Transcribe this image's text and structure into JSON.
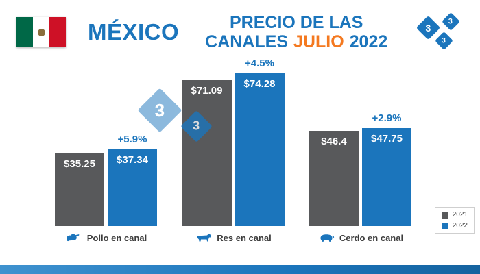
{
  "header": {
    "country_title": "MÉXICO",
    "title_line1": "PRECIO DE LAS",
    "title_word_canales": "CANALES",
    "title_word_month": "JULIO",
    "title_word_year": "2022",
    "logo_text": "3"
  },
  "chart_data": {
    "type": "bar",
    "title": "PRECIO DE LAS CANALES JULIO 2022",
    "categories": [
      "Pollo en canal",
      "Res en canal",
      "Cerdo en canal"
    ],
    "series": [
      {
        "name": "2021",
        "color": "#58595B",
        "values": [
          35.25,
          71.09,
          46.4
        ]
      },
      {
        "name": "2022",
        "color": "#1B75BC",
        "values": [
          37.34,
          74.28,
          47.75
        ]
      }
    ],
    "value_labels": [
      [
        "$35.25",
        "$37.34"
      ],
      [
        "$71.09",
        "$74.28"
      ],
      [
        "$46.4",
        "$47.75"
      ]
    ],
    "pct_change": [
      "+5.9%",
      "+4.5%",
      "+2.9%"
    ],
    "ylim": [
      0,
      80
    ],
    "grid": false,
    "legend_position": "bottom-right"
  },
  "legend": {
    "items": [
      {
        "label": "2021",
        "color": "#58595B"
      },
      {
        "label": "2022",
        "color": "#1B75BC"
      }
    ]
  },
  "colors": {
    "primary_blue": "#1B75BC",
    "dark_gray": "#58595B",
    "accent_orange": "#F47920",
    "flag_green": "#006847",
    "flag_red": "#CE1126"
  }
}
